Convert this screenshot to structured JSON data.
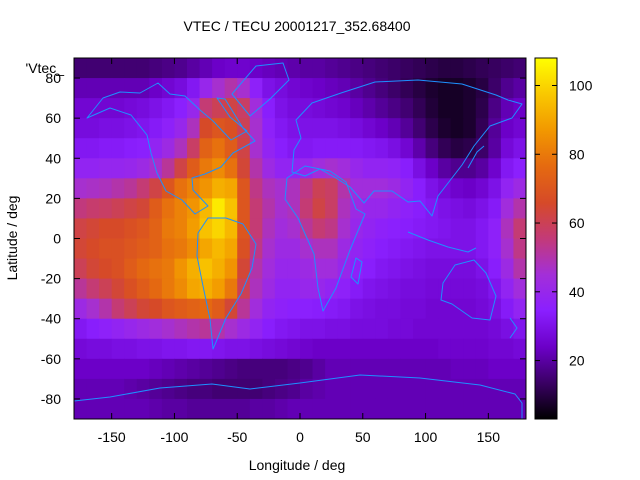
{
  "chart_data": {
    "type": "heatmap",
    "title": "VTEC / TECU 20001217_352.68400",
    "xlabel": "Longitude / deg",
    "ylabel": "Latitude / deg",
    "xlim": [
      -180,
      180
    ],
    "ylim": [
      -90,
      90
    ],
    "xticks": [
      -150,
      -100,
      -50,
      0,
      50,
      100,
      150
    ],
    "yticks": [
      -80,
      -60,
      -40,
      -20,
      0,
      20,
      40,
      60,
      80
    ],
    "colorbar": {
      "min": 3,
      "max": 108,
      "ticks": [
        20,
        40,
        60,
        80,
        100
      ]
    },
    "palette": [
      "#000000",
      "#3a0064",
      "#6c00c8",
      "#8a1fff",
      "#a32fd8",
      "#c33a78",
      "#d64a28",
      "#e56a10",
      "#f29800",
      "#f9c800",
      "#ffff00"
    ],
    "key_label": "'Vtec_",
    "coastline_color": "#1e90ff",
    "lon_step_deg": 10,
    "lat_step_deg": 10,
    "grid_lons": [
      -180,
      -170,
      -160,
      -150,
      -140,
      -130,
      -120,
      -110,
      -100,
      -90,
      -80,
      -70,
      -60,
      -50,
      -40,
      -30,
      -20,
      -10,
      0,
      10,
      20,
      30,
      40,
      50,
      60,
      70,
      80,
      90,
      100,
      110,
      120,
      130,
      140,
      150,
      160,
      170
    ],
    "grid_lats": [
      80,
      70,
      60,
      50,
      40,
      30,
      20,
      10,
      0,
      -10,
      -20,
      -30,
      -40,
      -50,
      -60,
      -70,
      -80,
      -90
    ],
    "vtec_grid": [
      [
        15,
        15,
        15,
        15,
        15,
        15,
        16,
        17,
        18,
        20,
        22,
        24,
        25,
        25,
        24,
        23,
        22,
        21,
        20,
        20,
        19,
        18,
        17,
        16,
        15,
        14,
        13,
        12,
        11,
        10,
        10,
        11,
        12,
        13,
        14,
        15
      ],
      [
        22,
        22,
        22,
        22,
        22,
        22,
        24,
        26,
        28,
        32,
        40,
        46,
        50,
        46,
        36,
        30,
        28,
        26,
        25,
        24,
        23,
        22,
        20,
        18,
        16,
        14,
        12,
        10,
        8,
        7,
        7,
        8,
        10,
        14,
        18,
        20
      ],
      [
        26,
        26,
        26,
        26,
        27,
        28,
        30,
        32,
        35,
        40,
        56,
        60,
        62,
        58,
        44,
        34,
        30,
        28,
        28,
        27,
        26,
        25,
        23,
        21,
        19,
        17,
        15,
        12,
        9,
        7,
        7,
        8,
        11,
        17,
        22,
        24
      ],
      [
        28,
        28,
        29,
        29,
        30,
        31,
        33,
        36,
        40,
        48,
        66,
        70,
        68,
        60,
        46,
        36,
        32,
        30,
        30,
        30,
        30,
        29,
        28,
        26,
        24,
        22,
        19,
        15,
        11,
        8,
        7,
        8,
        12,
        19,
        24,
        26
      ],
      [
        32,
        32,
        33,
        33,
        34,
        35,
        38,
        42,
        48,
        58,
        74,
        78,
        72,
        62,
        46,
        38,
        34,
        32,
        32,
        33,
        33,
        33,
        33,
        32,
        31,
        29,
        26,
        21,
        16,
        12,
        10,
        11,
        14,
        20,
        27,
        30
      ],
      [
        38,
        38,
        39,
        39,
        40,
        42,
        46,
        52,
        62,
        72,
        80,
        84,
        78,
        64,
        50,
        42,
        38,
        38,
        40,
        44,
        46,
        44,
        40,
        38,
        38,
        37,
        34,
        29,
        24,
        20,
        18,
        18,
        20,
        25,
        32,
        35
      ],
      [
        46,
        47,
        48,
        50,
        52,
        56,
        62,
        70,
        78,
        82,
        86,
        92,
        90,
        70,
        54,
        48,
        46,
        48,
        54,
        60,
        58,
        50,
        44,
        44,
        44,
        42,
        38,
        34,
        30,
        27,
        25,
        24,
        26,
        30,
        38,
        42
      ],
      [
        55,
        57,
        58,
        60,
        62,
        64,
        72,
        78,
        82,
        86,
        94,
        104,
        96,
        70,
        56,
        50,
        46,
        48,
        56,
        62,
        58,
        48,
        42,
        40,
        40,
        38,
        36,
        34,
        32,
        30,
        29,
        28,
        30,
        33,
        44,
        50
      ],
      [
        62,
        64,
        66,
        66,
        68,
        70,
        74,
        80,
        82,
        88,
        96,
        100,
        94,
        70,
        56,
        48,
        44,
        46,
        52,
        56,
        54,
        46,
        40,
        38,
        36,
        35,
        34,
        33,
        32,
        31,
        30,
        30,
        32,
        36,
        48,
        56
      ],
      [
        64,
        66,
        68,
        68,
        70,
        72,
        74,
        78,
        80,
        84,
        90,
        94,
        90,
        68,
        54,
        46,
        42,
        42,
        46,
        48,
        48,
        42,
        38,
        36,
        34,
        33,
        32,
        31,
        30,
        30,
        30,
        30,
        32,
        36,
        46,
        54
      ],
      [
        60,
        64,
        66,
        68,
        72,
        76,
        78,
        80,
        86,
        92,
        96,
        92,
        86,
        64,
        50,
        44,
        40,
        40,
        42,
        44,
        44,
        40,
        36,
        34,
        32,
        31,
        30,
        29,
        28,
        28,
        28,
        28,
        30,
        34,
        42,
        50
      ],
      [
        52,
        56,
        60,
        64,
        68,
        72,
        76,
        80,
        84,
        90,
        92,
        88,
        80,
        60,
        48,
        42,
        38,
        38,
        40,
        40,
        38,
        36,
        33,
        31,
        30,
        29,
        28,
        28,
        27,
        27,
        27,
        27,
        28,
        31,
        38,
        44
      ],
      [
        42,
        46,
        50,
        56,
        60,
        64,
        66,
        70,
        72,
        74,
        76,
        72,
        64,
        52,
        44,
        38,
        36,
        35,
        35,
        34,
        33,
        32,
        30,
        29,
        28,
        28,
        27,
        27,
        26,
        26,
        26,
        26,
        27,
        29,
        33,
        38
      ],
      [
        32,
        34,
        36,
        38,
        40,
        42,
        44,
        46,
        48,
        50,
        52,
        50,
        46,
        42,
        38,
        34,
        32,
        31,
        30,
        30,
        29,
        29,
        28,
        28,
        28,
        27,
        27,
        26,
        26,
        26,
        26,
        26,
        26,
        27,
        29,
        31
      ],
      [
        27,
        28,
        28,
        29,
        29,
        30,
        30,
        31,
        31,
        32,
        32,
        31,
        30,
        30,
        29,
        28,
        27,
        26,
        25,
        24,
        24,
        24,
        24,
        24,
        24,
        24,
        24,
        24,
        24,
        25,
        25,
        25,
        25,
        26,
        26,
        27
      ],
      [
        24,
        24,
        24,
        24,
        24,
        24,
        23,
        22,
        21,
        20,
        19,
        18,
        17,
        16,
        16,
        16,
        16,
        17,
        18,
        20,
        22,
        22,
        22,
        22,
        22,
        22,
        22,
        22,
        22,
        22,
        23,
        23,
        23,
        24,
        24,
        24
      ],
      [
        22,
        22,
        22,
        22,
        21,
        20,
        19,
        18,
        17,
        16,
        16,
        15,
        15,
        15,
        15,
        16,
        17,
        18,
        20,
        21,
        22,
        22,
        22,
        22,
        22,
        22,
        22,
        22,
        22,
        22,
        22,
        22,
        22,
        22,
        22,
        22
      ],
      [
        22,
        22,
        22,
        22,
        22,
        22,
        21,
        20,
        20,
        19,
        19,
        19,
        19,
        19,
        20,
        20,
        21,
        22,
        22,
        22,
        22,
        22,
        22,
        22,
        22,
        22,
        22,
        22,
        22,
        22,
        22,
        22,
        22,
        22,
        22,
        22
      ]
    ]
  }
}
